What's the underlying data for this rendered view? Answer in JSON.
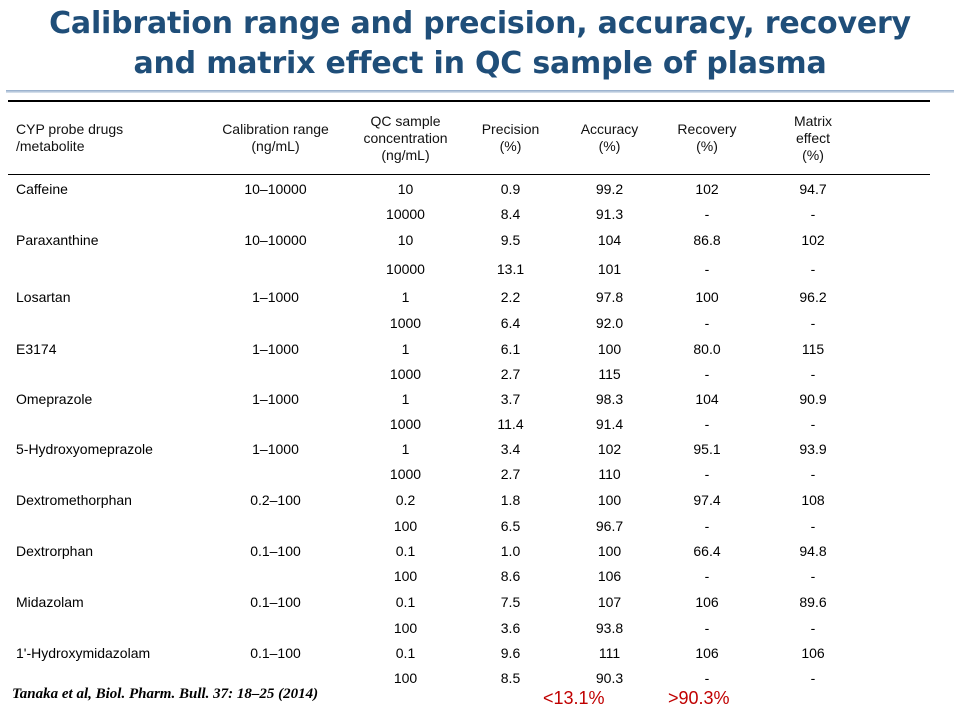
{
  "title": {
    "line1": "Calibration range and precision, accuracy, recovery",
    "line2": "and matrix effect in QC sample of plasma"
  },
  "table": {
    "headers": [
      [
        "CYP probe drugs",
        "/metabolite"
      ],
      [
        "Calibration range",
        "(ng/mL)"
      ],
      [
        "QC sample",
        "concentration",
        "(ng/mL)"
      ],
      [
        "Precision",
        "(%)"
      ],
      [
        "Accuracy",
        "(%)"
      ],
      [
        "Recovery",
        "(%)"
      ],
      [
        "Matrix",
        "effect",
        "(%)"
      ]
    ],
    "rows": [
      [
        "Caffeine",
        "10–10000",
        "10",
        "0.9",
        "99.2",
        "102",
        "94.7"
      ],
      [
        "",
        "",
        "10000",
        "8.4",
        "91.3",
        "-",
        "-"
      ],
      [
        "Paraxanthine",
        "10–10000",
        "10",
        "9.5",
        "104",
        "86.8",
        "102"
      ],
      [
        "",
        "",
        "10000",
        "13.1",
        "101",
        "-",
        "-"
      ],
      [
        "Losartan",
        "1–1000",
        "1",
        "2.2",
        "97.8",
        "100",
        "96.2"
      ],
      [
        "",
        "",
        "1000",
        "6.4",
        "92.0",
        "-",
        "-"
      ],
      [
        "E3174",
        "1–1000",
        "1",
        "6.1",
        "100",
        "80.0",
        "115"
      ],
      [
        "",
        "",
        "1000",
        "2.7",
        "115",
        "-",
        "-"
      ],
      [
        "Omeprazole",
        "1–1000",
        "1",
        "3.7",
        "98.3",
        "104",
        "90.9"
      ],
      [
        "",
        "",
        "1000",
        "11.4",
        "91.4",
        "-",
        "-"
      ],
      [
        "5-Hydroxyomeprazole",
        "1–1000",
        "1",
        "3.4",
        "102",
        "95.1",
        "93.9"
      ],
      [
        "",
        "",
        "1000",
        "2.7",
        "110",
        "-",
        "-"
      ],
      [
        "Dextromethorphan",
        "0.2–100",
        "0.2",
        "1.8",
        "100",
        "97.4",
        "108"
      ],
      [
        "",
        "",
        "100",
        "6.5",
        "96.7",
        "-",
        "-"
      ],
      [
        "Dextrorphan",
        "0.1–100",
        "0.1",
        "1.0",
        "100",
        "66.4",
        "94.8"
      ],
      [
        "",
        "",
        "100",
        "8.6",
        "106",
        "-",
        "-"
      ],
      [
        "Midazolam",
        "0.1–100",
        "0.1",
        "7.5",
        "107",
        "106",
        "89.6"
      ],
      [
        "",
        "",
        "100",
        "3.6",
        "93.8",
        "-",
        "-"
      ],
      [
        "1'-Hydroxymidazolam",
        "0.1–100",
        "0.1",
        "9.6",
        "111",
        "106",
        "106"
      ],
      [
        "",
        "",
        "100",
        "8.5",
        "90.3",
        "-",
        "-"
      ]
    ]
  },
  "citation": "Tanaka et al, Biol. Pharm. Bull. 37: 18–25 (2014)",
  "summary": {
    "precision": "<13.1%",
    "accuracy": ">90.3%"
  },
  "colors": {
    "title": "#1f4e79",
    "summary": "#c00000"
  }
}
